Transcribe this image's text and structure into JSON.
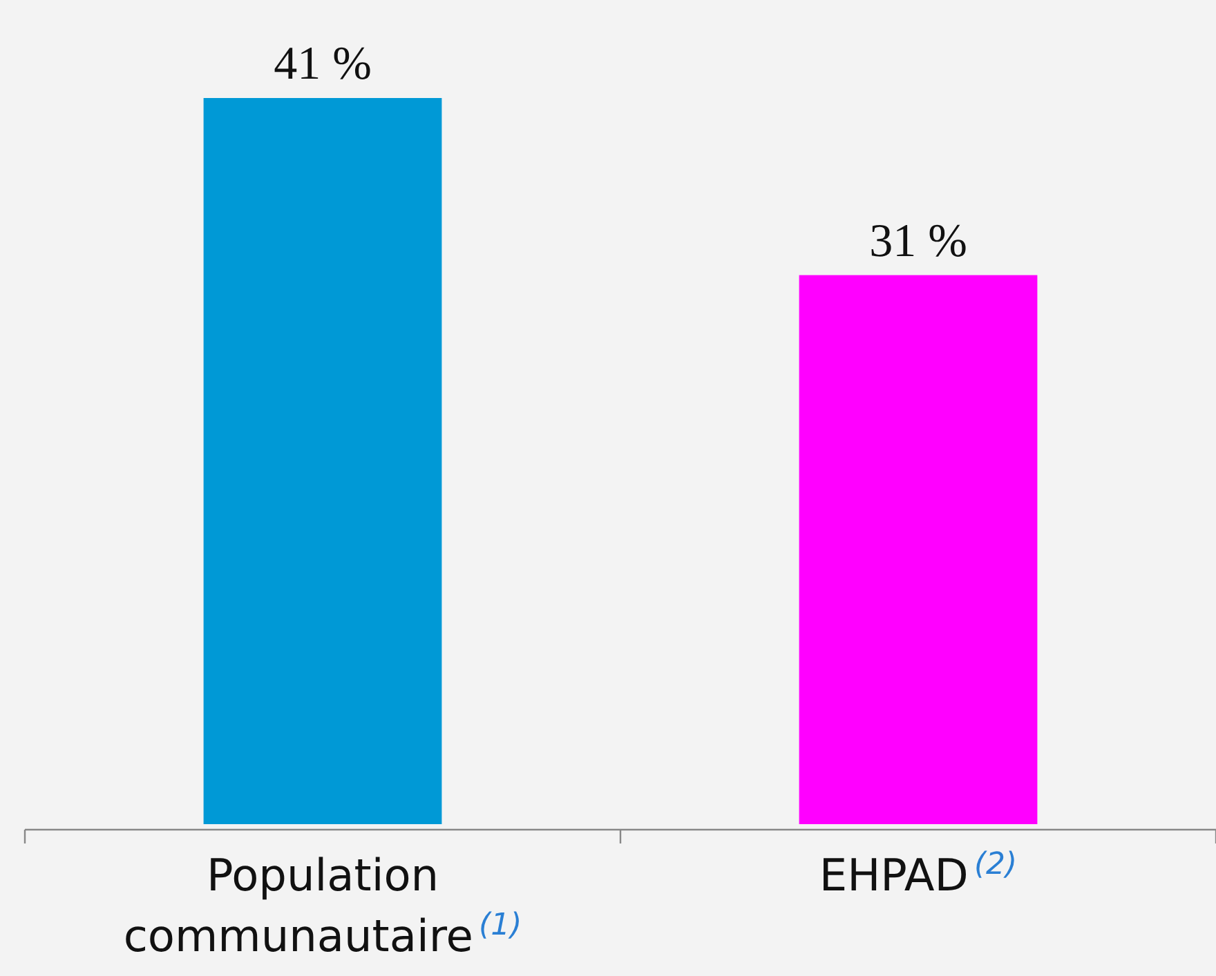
{
  "chart_data": {
    "type": "bar",
    "categories": [
      "Population communautaire$^{(1)}$",
      "EHPAD$^{(2)}$"
    ],
    "values": [
      41,
      31
    ],
    "colors": [
      "#0099d6",
      "#ff00ff"
    ],
    "value_labels": [
      "41 %",
      "31 %"
    ]
  }
}
